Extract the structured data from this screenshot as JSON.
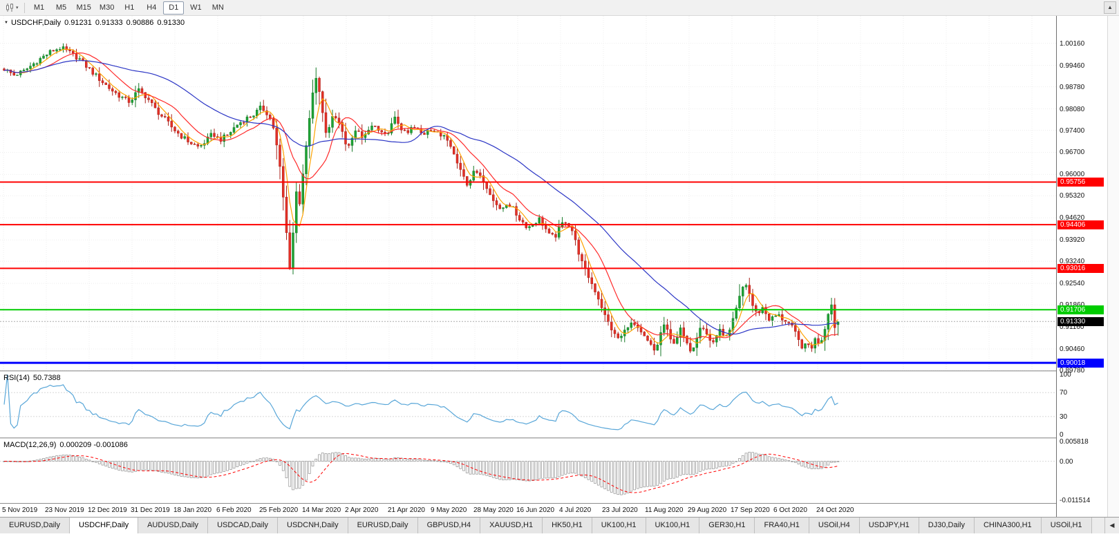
{
  "toolbar": {
    "timeframes": [
      "M1",
      "M5",
      "M15",
      "M30",
      "H1",
      "H4",
      "D1",
      "W1",
      "MN"
    ],
    "active": "D1"
  },
  "icons": {
    "dropdown": "▾",
    "collapse": "▼",
    "scroll_up": "▲",
    "tab_scroll_left": "◀"
  },
  "chart": {
    "title": "USDCHF,Daily",
    "ohlc": {
      "open": "0.91231",
      "high": "0.91333",
      "low": "0.90886",
      "close": "0.91330"
    },
    "y_ticks": [
      "1.00160",
      "0.99460",
      "0.98780",
      "0.98080",
      "0.97400",
      "0.96700",
      "0.96000",
      "0.95320",
      "0.94620",
      "0.93920",
      "0.93240",
      "0.92540",
      "0.91860",
      "0.91160",
      "0.90460",
      "0.89780"
    ],
    "x_ticks": [
      "5 Nov 2019",
      "23 Nov 2019",
      "12 Dec 2019",
      "31 Dec 2019",
      "18 Jan 2020",
      "6 Feb 2020",
      "25 Feb 2020",
      "14 Mar 2020",
      "2 Apr 2020",
      "21 Apr 2020",
      "9 May 2020",
      "28 May 2020",
      "16 Jun 2020",
      "4 Jul 2020",
      "23 Jul 2020",
      "11 Aug 2020",
      "29 Aug 2020",
      "17 Sep 2020",
      "6 Oct 2020",
      "24 Oct 2020"
    ],
    "x_axis": {
      "first_tick_x": 5,
      "tick_spacing": 62
    },
    "y_axis": {
      "top_price": 1.0103,
      "bottom_price": 0.8978
    },
    "hlines": [
      {
        "label": "0.95756",
        "price": 0.95756,
        "color": "#ff0000",
        "width": 2
      },
      {
        "label": "0.94406",
        "price": 0.94406,
        "color": "#ff0000",
        "width": 2
      },
      {
        "label": "0.93016",
        "price": 0.93016,
        "color": "#ff0000",
        "width": 2
      },
      {
        "label": "0.91706",
        "price": 0.91706,
        "color": "#00cc00",
        "width": 2
      },
      {
        "label": "0.90018",
        "price": 0.90018,
        "color": "#0000ff",
        "width": 3
      }
    ]
  },
  "indicators": {
    "rsi": {
      "label": "RSI(14)",
      "value": "50.7388",
      "scale": [
        "100",
        "70",
        "30",
        "0"
      ],
      "levels": [
        70,
        30
      ]
    },
    "macd": {
      "label": "MACD(12,26,9)",
      "values": "0.000209 -0.001086",
      "scale": [
        "0.005818",
        "0.00",
        "-0.011514"
      ]
    }
  },
  "colors": {
    "candle_up": "#1fa335",
    "candle_up_border": "#157a27",
    "candle_down": "#e43127",
    "candle_down_border": "#a81f18",
    "rsi_line": "#58a6d8",
    "macd_signal": "#ff0000",
    "macd_bar": "#8f8f8f",
    "current_price": "#000000"
  },
  "bottom_tabs": {
    "items": [
      "EURUSD,Daily",
      "USDCHF,Daily",
      "AUDUSD,Daily",
      "USDCAD,Daily",
      "USDCNH,Daily",
      "EURUSD,Daily",
      "GBPUSD,H4",
      "XAUUSD,H1",
      "HK50,H1",
      "UK100,H1",
      "UK100,H1",
      "GER30,H1",
      "FRA40,H1",
      "USOil,H4",
      "USDJPY,H1",
      "DJ30,Daily",
      "CHINA300,H1",
      "USOil,H1"
    ],
    "active_index": 1
  },
  "chart_data": {
    "type": "candlestick",
    "symbol": "USDCHF",
    "timeframe": "Daily",
    "candle_count": 255,
    "first_x": 6,
    "spacing": 4.75,
    "moving_averages": [
      {
        "period": 5,
        "color": "#ffa200"
      },
      {
        "period": 13,
        "color": "#ff2a2a"
      },
      {
        "period": 40,
        "color": "#2b35c5"
      }
    ],
    "price_path": [
      [
        6,
        0.9935
      ],
      [
        20,
        0.9915
      ],
      [
        35,
        0.9928
      ],
      [
        55,
        0.9962
      ],
      [
        75,
        0.9992
      ],
      [
        88,
        1.0002
      ],
      [
        100,
        0.9987
      ],
      [
        115,
        0.9966
      ],
      [
        130,
        0.9932
      ],
      [
        145,
        0.99
      ],
      [
        160,
        0.987
      ],
      [
        175,
        0.9846
      ],
      [
        188,
        0.983
      ],
      [
        200,
        0.9868
      ],
      [
        212,
        0.9846
      ],
      [
        225,
        0.9806
      ],
      [
        238,
        0.9776
      ],
      [
        250,
        0.9746
      ],
      [
        262,
        0.9722
      ],
      [
        275,
        0.9701
      ],
      [
        288,
        0.9686
      ],
      [
        298,
        0.9706
      ],
      [
        308,
        0.973
      ],
      [
        318,
        0.9709
      ],
      [
        330,
        0.9726
      ],
      [
        342,
        0.9756
      ],
      [
        355,
        0.9776
      ],
      [
        368,
        0.9791
      ],
      [
        378,
        0.9813
      ],
      [
        388,
        0.9791
      ],
      [
        396,
        0.9746
      ],
      [
        404,
        0.9641
      ],
      [
        410,
        0.9521
      ],
      [
        415,
        0.9401
      ],
      [
        419,
        0.9301
      ],
      [
        423,
        0.9381
      ],
      [
        428,
        0.9551
      ],
      [
        433,
        0.9501
      ],
      [
        438,
        0.9601
      ],
      [
        444,
        0.9701
      ],
      [
        450,
        0.9821
      ],
      [
        456,
        0.9906
      ],
      [
        461,
        0.9881
      ],
      [
        466,
        0.9801
      ],
      [
        471,
        0.9731
      ],
      [
        477,
        0.9756
      ],
      [
        483,
        0.9796
      ],
      [
        490,
        0.9771
      ],
      [
        497,
        0.9716
      ],
      [
        504,
        0.9681
      ],
      [
        511,
        0.9721
      ],
      [
        518,
        0.9749
      ],
      [
        525,
        0.9706
      ],
      [
        532,
        0.9736
      ],
      [
        540,
        0.9759
      ],
      [
        548,
        0.9736
      ],
      [
        556,
        0.9719
      ],
      [
        564,
        0.9746
      ],
      [
        572,
        0.9779
      ],
      [
        580,
        0.9749
      ],
      [
        588,
        0.9723
      ],
      [
        596,
        0.9749
      ],
      [
        604,
        0.9743
      ],
      [
        612,
        0.9723
      ],
      [
        620,
        0.9749
      ],
      [
        628,
        0.9739
      ],
      [
        636,
        0.9721
      ],
      [
        644,
        0.9729
      ],
      [
        652,
        0.9696
      ],
      [
        660,
        0.9641
      ],
      [
        668,
        0.9611
      ],
      [
        676,
        0.9571
      ],
      [
        684,
        0.9601
      ],
      [
        692,
        0.9616
      ],
      [
        700,
        0.9571
      ],
      [
        708,
        0.9541
      ],
      [
        716,
        0.9516
      ],
      [
        724,
        0.9481
      ],
      [
        732,
        0.9509
      ],
      [
        740,
        0.9499
      ],
      [
        748,
        0.9469
      ],
      [
        756,
        0.9449
      ],
      [
        764,
        0.9431
      ],
      [
        772,
        0.9444
      ],
      [
        780,
        0.9459
      ],
      [
        788,
        0.9433
      ],
      [
        796,
        0.9401
      ],
      [
        804,
        0.9406
      ],
      [
        812,
        0.9441
      ],
      [
        820,
        0.9453
      ],
      [
        828,
        0.9421
      ],
      [
        836,
        0.9361
      ],
      [
        844,
        0.9306
      ],
      [
        852,
        0.9273
      ],
      [
        860,
        0.9236
      ],
      [
        868,
        0.9196
      ],
      [
        876,
        0.9146
      ],
      [
        884,
        0.9113
      ],
      [
        892,
        0.9079
      ],
      [
        900,
        0.9086
      ],
      [
        908,
        0.9121
      ],
      [
        916,
        0.9126
      ],
      [
        924,
        0.9103
      ],
      [
        932,
        0.9083
      ],
      [
        940,
        0.9061
      ],
      [
        948,
        0.9036
      ],
      [
        954,
        0.9081
      ],
      [
        960,
        0.9126
      ],
      [
        966,
        0.9099
      ],
      [
        972,
        0.9063
      ],
      [
        978,
        0.9076
      ],
      [
        984,
        0.9109
      ],
      [
        990,
        0.9081
      ],
      [
        996,
        0.9046
      ],
      [
        1002,
        0.9046
      ],
      [
        1008,
        0.9086
      ],
      [
        1014,
        0.9126
      ],
      [
        1020,
        0.9106
      ],
      [
        1026,
        0.9073
      ],
      [
        1032,
        0.9069
      ],
      [
        1038,
        0.9096
      ],
      [
        1044,
        0.9106
      ],
      [
        1050,
        0.9079
      ],
      [
        1056,
        0.9103
      ],
      [
        1062,
        0.9146
      ],
      [
        1068,
        0.9193
      ],
      [
        1074,
        0.9239
      ],
      [
        1079,
        0.9253
      ],
      [
        1084,
        0.9223
      ],
      [
        1090,
        0.9176
      ],
      [
        1096,
        0.9153
      ],
      [
        1102,
        0.9181
      ],
      [
        1108,
        0.9159
      ],
      [
        1114,
        0.9136
      ],
      [
        1120,
        0.9149
      ],
      [
        1126,
        0.9153
      ],
      [
        1132,
        0.9141
      ],
      [
        1138,
        0.9134
      ],
      [
        1144,
        0.9121
      ],
      [
        1150,
        0.9099
      ],
      [
        1156,
        0.9069
      ],
      [
        1162,
        0.9049
      ],
      [
        1168,
        0.9061
      ],
      [
        1174,
        0.9051
      ],
      [
        1180,
        0.9079
      ],
      [
        1186,
        0.9063
      ],
      [
        1192,
        0.9096
      ],
      [
        1198,
        0.9161
      ],
      [
        1202,
        0.9196
      ],
      [
        1206,
        0.9156
      ],
      [
        1209,
        0.9091
      ],
      [
        1213,
        0.9133
      ]
    ]
  }
}
